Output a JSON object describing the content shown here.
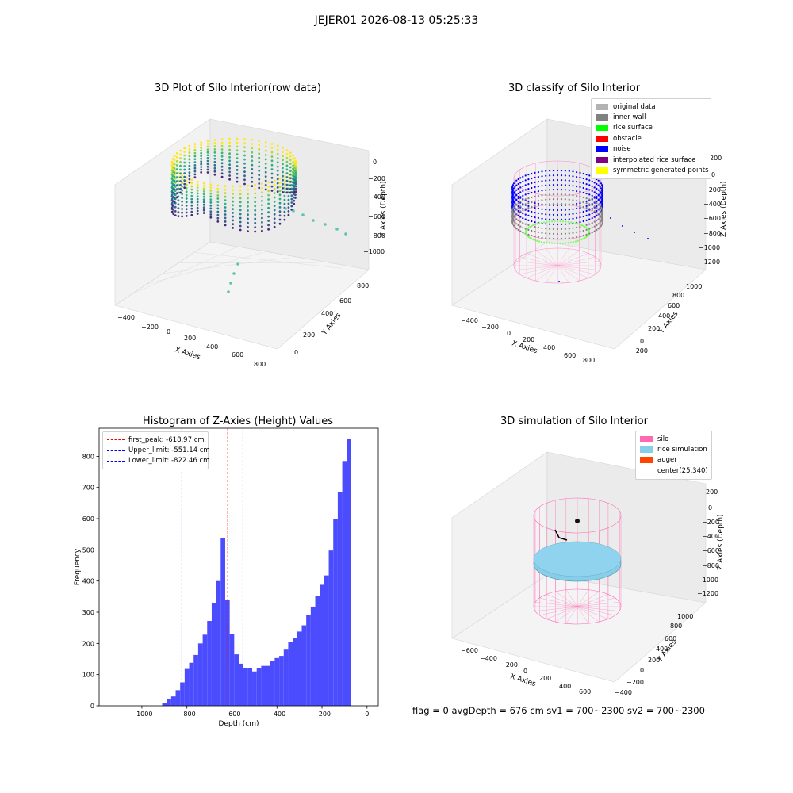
{
  "suptitle": "JEJER01 2026-08-13 05:25:33",
  "panel1": {
    "title": "3D Plot of Silo Interior(row data)",
    "xlabel": "X Axies",
    "ylabel": "Y Axies",
    "zlabel": "Z Axies (Depth)",
    "xticks": [
      "−400",
      "−200",
      "0",
      "200",
      "400",
      "600",
      "800"
    ],
    "yticks": [
      "0",
      "200",
      "400",
      "600",
      "800"
    ],
    "zticks": [
      "0",
      "−200",
      "−400",
      "−600",
      "−800",
      "−1000"
    ]
  },
  "panel2": {
    "title": "3D classify of Silo Interior",
    "xlabel": "X Axies",
    "ylabel": "Y Axies",
    "zlabel": "Z Axies (Depth)",
    "xticks": [
      "−400",
      "−200",
      "0",
      "200",
      "400",
      "600",
      "800"
    ],
    "yticks": [
      "−200",
      "0",
      "200",
      "400",
      "600",
      "800",
      "1000"
    ],
    "zticks": [
      "200",
      "0",
      "−200",
      "−400",
      "−600",
      "−800",
      "−1000",
      "−1200"
    ],
    "legend": [
      {
        "label": "original data",
        "color": "#b3b3b3"
      },
      {
        "label": "inner wall",
        "color": "#808080"
      },
      {
        "label": "rice surface",
        "color": "#00ff00"
      },
      {
        "label": "obstacle",
        "color": "#ff0000"
      },
      {
        "label": "noise",
        "color": "#0000ff"
      },
      {
        "label": "interpolated rice surface",
        "color": "#800080"
      },
      {
        "label": "symmetric generated points",
        "color": "#ffff00"
      }
    ]
  },
  "panel4": {
    "title": "3D simulation of Silo Interior",
    "xlabel": "X Axies",
    "ylabel": "Y Axies",
    "zlabel": "Z Axies (Depth)",
    "xticks": [
      "−600",
      "−400",
      "−200",
      "0",
      "200",
      "400",
      "600"
    ],
    "yticks": [
      "−400",
      "−200",
      "0",
      "200",
      "400",
      "600",
      "800",
      "1000"
    ],
    "zticks": [
      "200",
      "0",
      "−200",
      "−400",
      "−600",
      "−800",
      "−1000",
      "−1200"
    ],
    "legend": [
      {
        "label": "silo",
        "color": "#ff69b4"
      },
      {
        "label": "rice simulation",
        "color": "#87ceeb"
      },
      {
        "label": "auger",
        "color": "#ff4500"
      },
      {
        "label": "center(25,340)",
        "color": "#ffffff"
      }
    ]
  },
  "bottom_text": "flag = 0     avgDepth = 676 cm  sv1 = 700~2300  sv2 = 700~2300",
  "chart_data": {
    "type": "bar",
    "title": "Histogram of Z-Axies (Height) Values",
    "xlabel": "Depth (cm)",
    "ylabel": "Frequency",
    "xlim": [
      -1190,
      50
    ],
    "ylim": [
      0,
      890
    ],
    "xticks": [
      -1000,
      -800,
      -600,
      -400,
      -200,
      0
    ],
    "yticks": [
      0,
      100,
      200,
      300,
      400,
      500,
      600,
      700,
      800
    ],
    "bar_color": "#4c4cff",
    "bin_width": 20,
    "bins": [
      {
        "x": -900,
        "v": 10
      },
      {
        "x": -880,
        "v": 22
      },
      {
        "x": -860,
        "v": 30
      },
      {
        "x": -840,
        "v": 50
      },
      {
        "x": -820,
        "v": 75
      },
      {
        "x": -800,
        "v": 118
      },
      {
        "x": -780,
        "v": 138
      },
      {
        "x": -760,
        "v": 163
      },
      {
        "x": -740,
        "v": 200
      },
      {
        "x": -720,
        "v": 228
      },
      {
        "x": -700,
        "v": 272
      },
      {
        "x": -680,
        "v": 330
      },
      {
        "x": -660,
        "v": 400
      },
      {
        "x": -640,
        "v": 538
      },
      {
        "x": -620,
        "v": 340
      },
      {
        "x": -600,
        "v": 230
      },
      {
        "x": -580,
        "v": 165
      },
      {
        "x": -560,
        "v": 135
      },
      {
        "x": -540,
        "v": 122
      },
      {
        "x": -520,
        "v": 122
      },
      {
        "x": -500,
        "v": 110
      },
      {
        "x": -480,
        "v": 120
      },
      {
        "x": -460,
        "v": 128
      },
      {
        "x": -440,
        "v": 128
      },
      {
        "x": -420,
        "v": 143
      },
      {
        "x": -400,
        "v": 153
      },
      {
        "x": -380,
        "v": 160
      },
      {
        "x": -360,
        "v": 180
      },
      {
        "x": -340,
        "v": 205
      },
      {
        "x": -320,
        "v": 218
      },
      {
        "x": -300,
        "v": 238
      },
      {
        "x": -280,
        "v": 258
      },
      {
        "x": -260,
        "v": 290
      },
      {
        "x": -240,
        "v": 318
      },
      {
        "x": -220,
        "v": 352
      },
      {
        "x": -200,
        "v": 388
      },
      {
        "x": -180,
        "v": 418
      },
      {
        "x": -160,
        "v": 498
      },
      {
        "x": -140,
        "v": 600
      },
      {
        "x": -120,
        "v": 685
      },
      {
        "x": -100,
        "v": 785
      },
      {
        "x": -80,
        "v": 855
      }
    ],
    "vlines": [
      {
        "label": "first_peak: -618.97 cm",
        "x": -618.97,
        "color": "#ff0000"
      },
      {
        "label": "Upper_limit: -551.14 cm",
        "x": -551.14,
        "color": "#0000ff"
      },
      {
        "label": "Lower_limit: -822.46 cm",
        "x": -822.46,
        "color": "#0000ff"
      }
    ]
  }
}
